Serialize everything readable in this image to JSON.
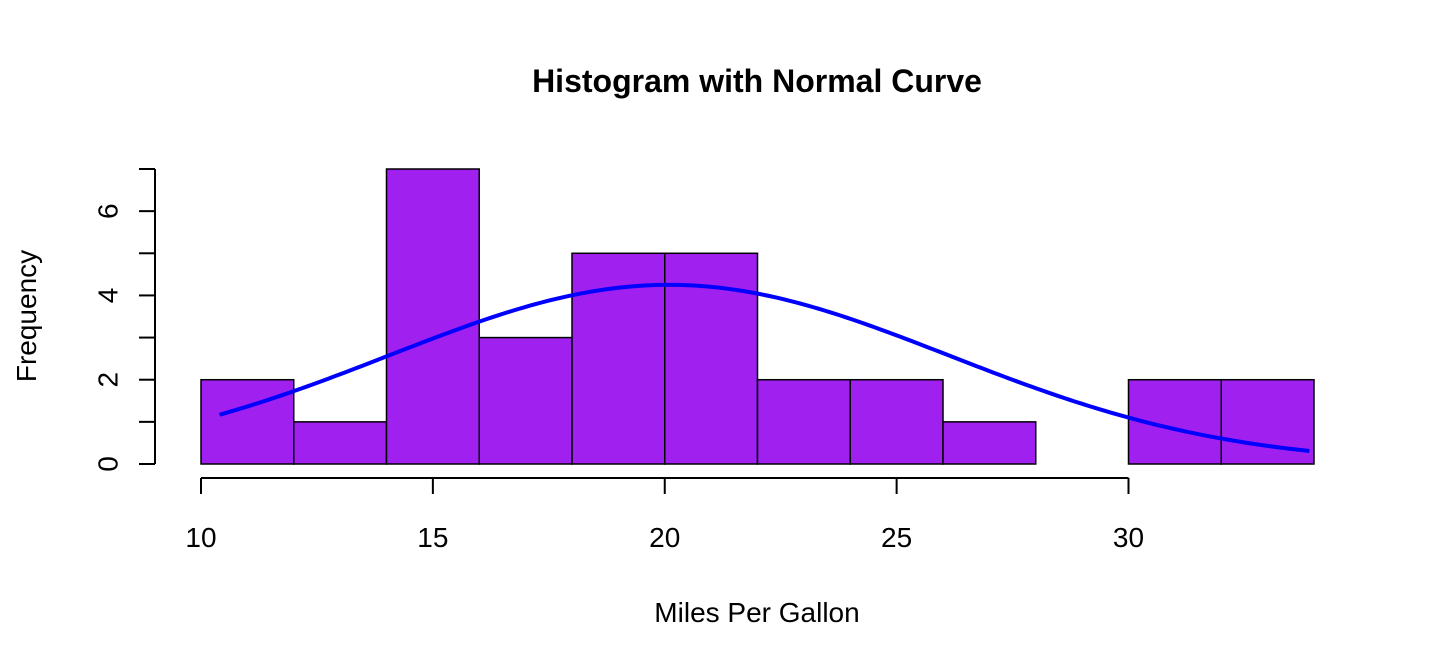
{
  "chart_data": {
    "type": "bar",
    "title": "Histogram with Normal Curve",
    "xlabel": "Miles Per Gallon",
    "ylabel": "Frequency",
    "bins": [
      {
        "start": 10,
        "end": 12,
        "count": 2
      },
      {
        "start": 12,
        "end": 14,
        "count": 1
      },
      {
        "start": 14,
        "end": 16,
        "count": 7
      },
      {
        "start": 16,
        "end": 18,
        "count": 3
      },
      {
        "start": 18,
        "end": 20,
        "count": 5
      },
      {
        "start": 20,
        "end": 22,
        "count": 5
      },
      {
        "start": 22,
        "end": 24,
        "count": 2
      },
      {
        "start": 24,
        "end": 26,
        "count": 2
      },
      {
        "start": 26,
        "end": 28,
        "count": 1
      },
      {
        "start": 28,
        "end": 30,
        "count": 0
      },
      {
        "start": 30,
        "end": 32,
        "count": 2
      },
      {
        "start": 32,
        "end": 34,
        "count": 2
      }
    ],
    "xlim": [
      10,
      34
    ],
    "ylim": [
      0,
      7
    ],
    "x_ticks": [
      10,
      15,
      20,
      25,
      30
    ],
    "y_ticks": [
      0,
      2,
      4,
      6
    ],
    "curve": {
      "type": "normal",
      "mean": 20.09,
      "sd": 6.03,
      "x_range": [
        10.4,
        33.9
      ],
      "scale_factor": 64.26
    },
    "bar_color": "#a020f0",
    "curve_color": "#0000ff",
    "grid": false,
    "legend": "none"
  }
}
